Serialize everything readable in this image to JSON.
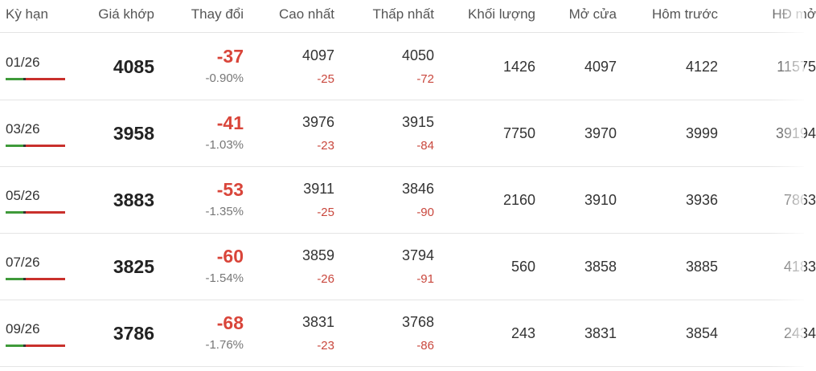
{
  "table": {
    "headers": [
      "Kỳ hạn",
      "Giá khớp",
      "Thay đổi",
      "Cao nhất",
      "Thấp nhất",
      "Khối lượng",
      "Mở cửa",
      "Hôm trước",
      "HĐ mở"
    ],
    "rows": [
      {
        "term": "01/26",
        "price": "4085",
        "change": "-37",
        "change_pct": "-0.90%",
        "high": "4097",
        "high_diff": "-25",
        "low": "4050",
        "low_diff": "-72",
        "volume": "1426",
        "open": "4097",
        "prev": "4122",
        "oi": "11575"
      },
      {
        "term": "03/26",
        "price": "3958",
        "change": "-41",
        "change_pct": "-1.03%",
        "high": "3976",
        "high_diff": "-23",
        "low": "3915",
        "low_diff": "-84",
        "volume": "7750",
        "open": "3970",
        "prev": "3999",
        "oi": "39194"
      },
      {
        "term": "05/26",
        "price": "3883",
        "change": "-53",
        "change_pct": "-1.35%",
        "high": "3911",
        "high_diff": "-25",
        "low": "3846",
        "low_diff": "-90",
        "volume": "2160",
        "open": "3910",
        "prev": "3936",
        "oi": "7863"
      },
      {
        "term": "07/26",
        "price": "3825",
        "change": "-60",
        "change_pct": "-1.54%",
        "high": "3859",
        "high_diff": "-26",
        "low": "3794",
        "low_diff": "-91",
        "volume": "560",
        "open": "3858",
        "prev": "3885",
        "oi": "4183"
      },
      {
        "term": "09/26",
        "price": "3786",
        "change": "-68",
        "change_pct": "-1.76%",
        "high": "3831",
        "high_diff": "-23",
        "low": "3768",
        "low_diff": "-86",
        "volume": "243",
        "open": "3831",
        "prev": "3854",
        "oi": "2434"
      }
    ]
  }
}
